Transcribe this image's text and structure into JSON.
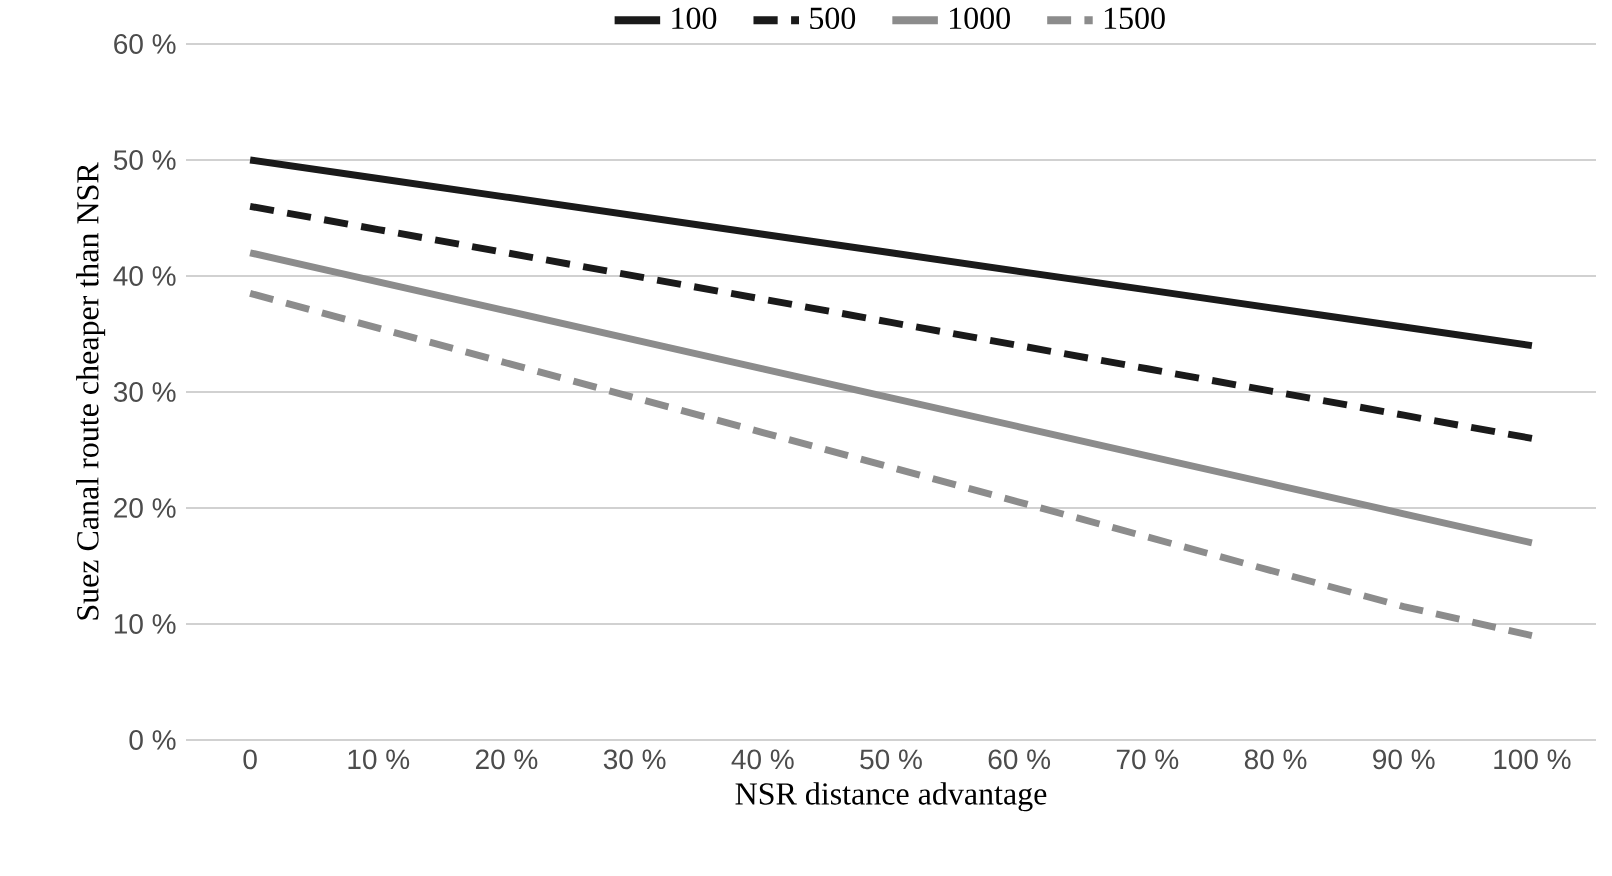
{
  "chart_data": {
    "type": "line",
    "xlabel": "NSR distance advantage",
    "ylabel": "Suez Canal route  cheaper than NSR",
    "categories": [
      "0",
      "10 %",
      "20 %",
      "30 %",
      "40 %",
      "50 %",
      "60 %",
      "70 %",
      "80 %",
      "90 %",
      "100 %"
    ],
    "series": [
      {
        "name": "100",
        "color": "#1a1a1a",
        "line_style": "solid",
        "values": [
          50,
          48.4,
          46.8,
          45.2,
          43.6,
          42,
          40.4,
          38.8,
          37.2,
          35.6,
          34
        ]
      },
      {
        "name": "500",
        "color": "#1a1a1a",
        "line_style": "dashed",
        "values": [
          46,
          44,
          42,
          40,
          38,
          36,
          34,
          32,
          30,
          28,
          26
        ]
      },
      {
        "name": "1000",
        "color": "#8c8c8c",
        "line_style": "solid",
        "values": [
          42,
          39.5,
          37,
          34.5,
          32,
          29.5,
          27,
          24.5,
          22,
          19.5,
          17
        ]
      },
      {
        "name": "1500",
        "color": "#8c8c8c",
        "line_style": "dashed",
        "values": [
          38.5,
          35.5,
          32.5,
          29.5,
          26.5,
          23.5,
          20.5,
          17.5,
          14.5,
          11.5,
          9
        ]
      }
    ],
    "ylim": [
      0,
      60
    ],
    "yticks": [
      {
        "value": 0,
        "label": "0 %"
      },
      {
        "value": 10,
        "label": "10 %"
      },
      {
        "value": 20,
        "label": "20 %"
      },
      {
        "value": 30,
        "label": "30 %"
      },
      {
        "value": 40,
        "label": "40 %"
      },
      {
        "value": 50,
        "label": "50 %"
      },
      {
        "value": 60,
        "label": "60 %"
      }
    ],
    "grid": "y",
    "legend": "top",
    "marker": "none"
  }
}
